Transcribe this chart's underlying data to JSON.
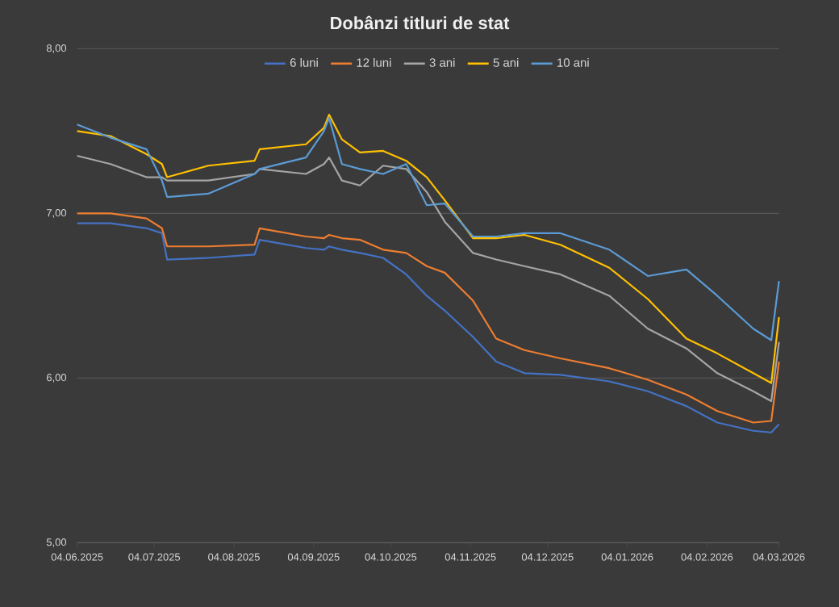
{
  "chart_data": {
    "type": "line",
    "title": "Dobânzi titluri de stat",
    "x": [
      "2025-06-04",
      "2025-06-17",
      "2025-07-01",
      "2025-07-07",
      "2025-07-09",
      "2025-07-25",
      "2025-08-12",
      "2025-08-14",
      "2025-09-01",
      "2025-09-08",
      "2025-09-10",
      "2025-09-15",
      "2025-09-22",
      "2025-10-01",
      "2025-10-10",
      "2025-10-18",
      "2025-10-25",
      "2025-11-05",
      "2025-11-14",
      "2025-11-25",
      "2025-12-09",
      "2025-12-28",
      "2026-01-12",
      "2026-01-27",
      "2026-02-08",
      "2026-02-22",
      "2026-03-01",
      "2026-03-04"
    ],
    "series": [
      {
        "name": "6 luni",
        "color": "#4472c4",
        "values": [
          6.94,
          6.94,
          6.91,
          6.88,
          6.72,
          6.73,
          6.75,
          6.84,
          6.79,
          6.78,
          6.8,
          6.78,
          6.76,
          6.73,
          6.63,
          6.5,
          6.41,
          6.25,
          6.1,
          6.03,
          6.02,
          5.98,
          5.92,
          5.83,
          5.73,
          5.68,
          5.67,
          5.72
        ]
      },
      {
        "name": "12 luni",
        "color": "#ed7d31",
        "values": [
          7.0,
          7.0,
          6.97,
          6.91,
          6.8,
          6.8,
          6.81,
          6.91,
          6.86,
          6.85,
          6.87,
          6.85,
          6.84,
          6.78,
          6.76,
          6.68,
          6.64,
          6.47,
          6.24,
          6.17,
          6.12,
          6.06,
          5.99,
          5.9,
          5.8,
          5.73,
          5.74,
          6.1
        ]
      },
      {
        "name": "3 ani",
        "color": "#a5a5a5",
        "values": [
          7.35,
          7.3,
          7.22,
          7.22,
          7.2,
          7.2,
          7.24,
          7.27,
          7.24,
          7.3,
          7.34,
          7.2,
          7.17,
          7.29,
          7.27,
          7.13,
          6.95,
          6.76,
          6.72,
          6.68,
          6.63,
          6.5,
          6.3,
          6.18,
          6.03,
          5.92,
          5.86,
          6.22
        ]
      },
      {
        "name": "5 ani",
        "color": "#ffc000",
        "values": [
          7.5,
          7.47,
          7.36,
          7.3,
          7.22,
          7.29,
          7.32,
          7.39,
          7.42,
          7.52,
          7.6,
          7.45,
          7.37,
          7.38,
          7.32,
          7.22,
          7.08,
          6.85,
          6.85,
          6.87,
          6.81,
          6.67,
          6.48,
          6.24,
          6.15,
          6.03,
          5.97,
          6.37
        ]
      },
      {
        "name": "10 ani",
        "color": "#5b9bd5",
        "values": [
          7.54,
          7.46,
          7.39,
          7.2,
          7.1,
          7.12,
          7.24,
          7.27,
          7.34,
          7.5,
          7.58,
          7.3,
          7.27,
          7.24,
          7.3,
          7.05,
          7.06,
          6.86,
          6.86,
          6.88,
          6.88,
          6.78,
          6.62,
          6.66,
          6.5,
          6.3,
          6.23,
          6.59
        ]
      }
    ],
    "xlim": [
      "2025-06-04",
      "2026-03-04"
    ],
    "xticks": [
      {
        "value": "2025-06-04",
        "label": "04.06.2025"
      },
      {
        "value": "2025-07-04",
        "label": "04.07.2025"
      },
      {
        "value": "2025-08-04",
        "label": "04.08.2025"
      },
      {
        "value": "2025-09-04",
        "label": "04.09.2025"
      },
      {
        "value": "2025-10-04",
        "label": "04.10.2025"
      },
      {
        "value": "2025-11-04",
        "label": "04.11.2025"
      },
      {
        "value": "2025-12-04",
        "label": "04.12.2025"
      },
      {
        "value": "2026-01-04",
        "label": "04.01.2026"
      },
      {
        "value": "2026-02-04",
        "label": "04.02.2026"
      },
      {
        "value": "2026-03-04",
        "label": "04.03.2026"
      }
    ],
    "ylim": [
      5,
      8
    ],
    "yticks": [
      {
        "value": 5,
        "label": "5,00"
      },
      {
        "value": 6,
        "label": "6,00"
      },
      {
        "value": 7,
        "label": "7,00"
      },
      {
        "value": 8,
        "label": "8,00"
      }
    ],
    "grid": "y",
    "legend": "top"
  }
}
